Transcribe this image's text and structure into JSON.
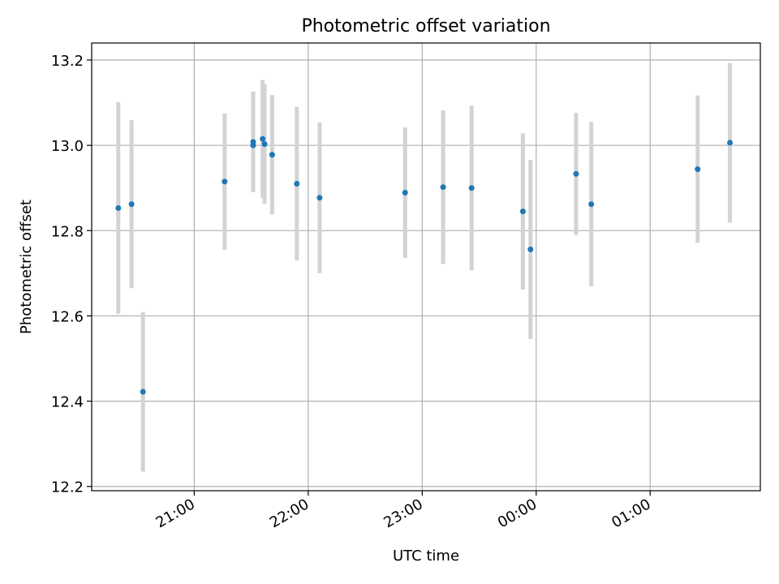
{
  "chart_data": {
    "type": "scatter",
    "title": "Photometric offset variation",
    "xlabel": "UTC time",
    "ylabel": "Photometric offset",
    "x_axis": "time",
    "xlim": [
      "20:06",
      "01:58"
    ],
    "ylim": [
      12.19,
      13.24
    ],
    "grid": true,
    "x_ticks": [
      "21:00",
      "22:00",
      "23:00",
      "00:00",
      "01:00"
    ],
    "y_ticks": [
      "12.2",
      "12.4",
      "12.6",
      "12.8",
      "13.0",
      "13.2"
    ],
    "y_tick_values": [
      12.2,
      12.4,
      12.6,
      12.8,
      13.0,
      13.2
    ],
    "point_color": "#1f77b4",
    "errorbar_color": "#d3d3d3",
    "series": [
      {
        "x": [
          "20:20",
          "20:27",
          "20:33",
          "21:16",
          "21:31",
          "21:31",
          "21:36",
          "21:37",
          "21:41",
          "21:54",
          "22:06",
          "22:51",
          "23:11",
          "23:26",
          "23:53",
          "23:57",
          "00:21",
          "00:29",
          "01:25",
          "01:42"
        ],
        "y": [
          12.853,
          12.862,
          12.422,
          12.915,
          13.008,
          13.0,
          13.015,
          13.003,
          12.978,
          12.91,
          12.877,
          12.889,
          12.902,
          12.9,
          12.845,
          12.756,
          12.933,
          12.862,
          12.944,
          13.006
        ],
        "err": [
          0.248,
          0.197,
          0.187,
          0.16,
          0.118,
          0.11,
          0.138,
          0.14,
          0.14,
          0.18,
          0.177,
          0.153,
          0.18,
          0.193,
          0.183,
          0.21,
          0.143,
          0.193,
          0.173,
          0.187
        ]
      }
    ]
  }
}
